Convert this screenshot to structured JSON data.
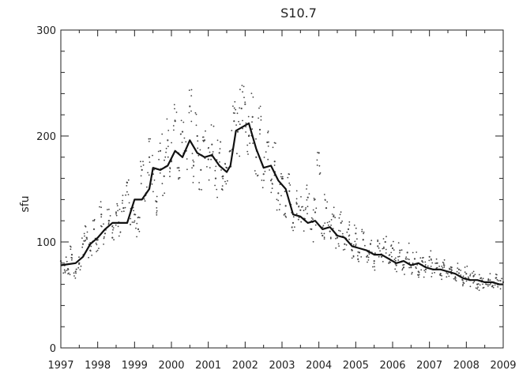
{
  "chart_data": {
    "type": "line",
    "title": "S10.7",
    "xlabel": "",
    "ylabel": "sfu",
    "xlim": [
      1997,
      2009
    ],
    "ylim": [
      0,
      300
    ],
    "x_ticks": [
      "1997",
      "1998",
      "1999",
      "2000",
      "2001",
      "2002",
      "2003",
      "2004",
      "2005",
      "2006",
      "2007",
      "2008",
      "2009"
    ],
    "y_ticks": [
      "0",
      "100",
      "200",
      "300"
    ],
    "grid": false,
    "series": [
      {
        "style": "scattered-daily-points",
        "x": [
          1997.0,
          1997.1,
          1997.2,
          1997.3,
          1997.4,
          1997.5,
          1997.6,
          1997.7,
          1997.8,
          1997.9,
          1998.0,
          1998.1,
          1998.2,
          1998.3,
          1998.4,
          1998.5,
          1998.6,
          1998.7,
          1998.8,
          1998.9,
          1999.0,
          1999.1,
          1999.2,
          1999.3,
          1999.4,
          1999.5,
          1999.6,
          1999.7,
          1999.8,
          1999.9,
          2000.0,
          2000.1,
          2000.2,
          2000.3,
          2000.4,
          2000.5,
          2000.6,
          2000.7,
          2000.8,
          2000.9,
          2001.0,
          2001.1,
          2001.2,
          2001.3,
          2001.4,
          2001.5,
          2001.6,
          2001.7,
          2001.8,
          2001.9,
          2002.0,
          2002.1,
          2002.2,
          2002.3,
          2002.4,
          2002.5,
          2002.6,
          2002.7,
          2002.8,
          2002.9,
          2003.0,
          2003.1,
          2003.2,
          2003.3,
          2003.4,
          2003.5,
          2003.6,
          2003.7,
          2003.8,
          2003.9,
          2004.0,
          2004.1,
          2004.2,
          2004.3,
          2004.4,
          2004.5,
          2004.6,
          2004.7,
          2004.8,
          2004.9,
          2005.0,
          2005.1,
          2005.2,
          2005.3,
          2005.4,
          2005.5,
          2005.6,
          2005.7,
          2005.8,
          2005.9,
          2006.0,
          2006.1,
          2006.2,
          2006.3,
          2006.4,
          2006.5,
          2006.6,
          2006.7,
          2006.8,
          2006.9,
          2007.0,
          2007.1,
          2007.2,
          2007.3,
          2007.4,
          2007.5,
          2007.6,
          2007.7,
          2007.8,
          2007.9,
          2008.0,
          2008.1,
          2008.2,
          2008.3,
          2008.4,
          2008.5,
          2008.6,
          2008.7,
          2008.8,
          2008.9,
          2009.0
        ],
        "values": [
          82,
          78,
          74,
          88,
          72,
          80,
          98,
          104,
          92,
          112,
          102,
          126,
          108,
          120,
          104,
          128,
          118,
          132,
          156,
          130,
          126,
          112,
          168,
          144,
          180,
          164,
          138,
          186,
          162,
          196,
          176,
          214,
          170,
          204,
          186,
          228,
          172,
          200,
          168,
          196,
          178,
          192,
          160,
          184,
          162,
          170,
          186,
          214,
          204,
          226,
          230,
          200,
          218,
          180,
          206,
          164,
          194,
          158,
          176,
          146,
          160,
          134,
          148,
          118,
          136,
          130,
          122,
          142,
          112,
          128,
          184,
          106,
          132,
          110,
          124,
          104,
          118,
          98,
          112,
          92,
          108,
          90,
          102,
          86,
          98,
          82,
          96,
          86,
          100,
          80,
          94,
          78,
          92,
          76,
          90,
          76,
          84,
          72,
          82,
          74,
          86,
          74,
          80,
          70,
          78,
          72,
          76,
          66,
          74,
          64,
          70,
          64,
          68,
          60,
          66,
          62,
          64,
          58,
          66,
          60,
          62
        ],
        "color": "#444444"
      },
      {
        "style": "smoothed-line",
        "x": [
          1997.0,
          1997.2,
          1997.4,
          1997.6,
          1997.8,
          1998.0,
          1998.2,
          1998.4,
          1998.6,
          1998.8,
          1999.0,
          1999.2,
          1999.4,
          1999.5,
          1999.7,
          1999.9,
          2000.1,
          2000.3,
          2000.5,
          2000.7,
          2000.9,
          2001.1,
          2001.3,
          2001.5,
          2001.6,
          2001.75,
          2001.9,
          2002.1,
          2002.3,
          2002.5,
          2002.7,
          2002.9,
          2003.1,
          2003.3,
          2003.5,
          2003.7,
          2003.9,
          2004.1,
          2004.3,
          2004.5,
          2004.7,
          2004.9,
          2005.1,
          2005.3,
          2005.5,
          2005.7,
          2005.9,
          2006.1,
          2006.3,
          2006.5,
          2006.7,
          2006.9,
          2007.1,
          2007.3,
          2007.5,
          2007.7,
          2007.9,
          2008.1,
          2008.3,
          2008.5,
          2008.7,
          2008.9,
          2009.0
        ],
        "values": [
          78,
          79,
          80,
          86,
          98,
          104,
          112,
          118,
          118,
          118,
          140,
          140,
          150,
          170,
          168,
          172,
          186,
          180,
          196,
          184,
          180,
          182,
          172,
          166,
          172,
          205,
          208,
          212,
          188,
          170,
          172,
          158,
          150,
          126,
          124,
          118,
          120,
          112,
          114,
          106,
          104,
          96,
          94,
          92,
          88,
          88,
          84,
          80,
          82,
          78,
          80,
          76,
          74,
          74,
          72,
          70,
          66,
          64,
          64,
          62,
          62,
          60,
          60
        ],
        "color": "#111111"
      }
    ]
  }
}
